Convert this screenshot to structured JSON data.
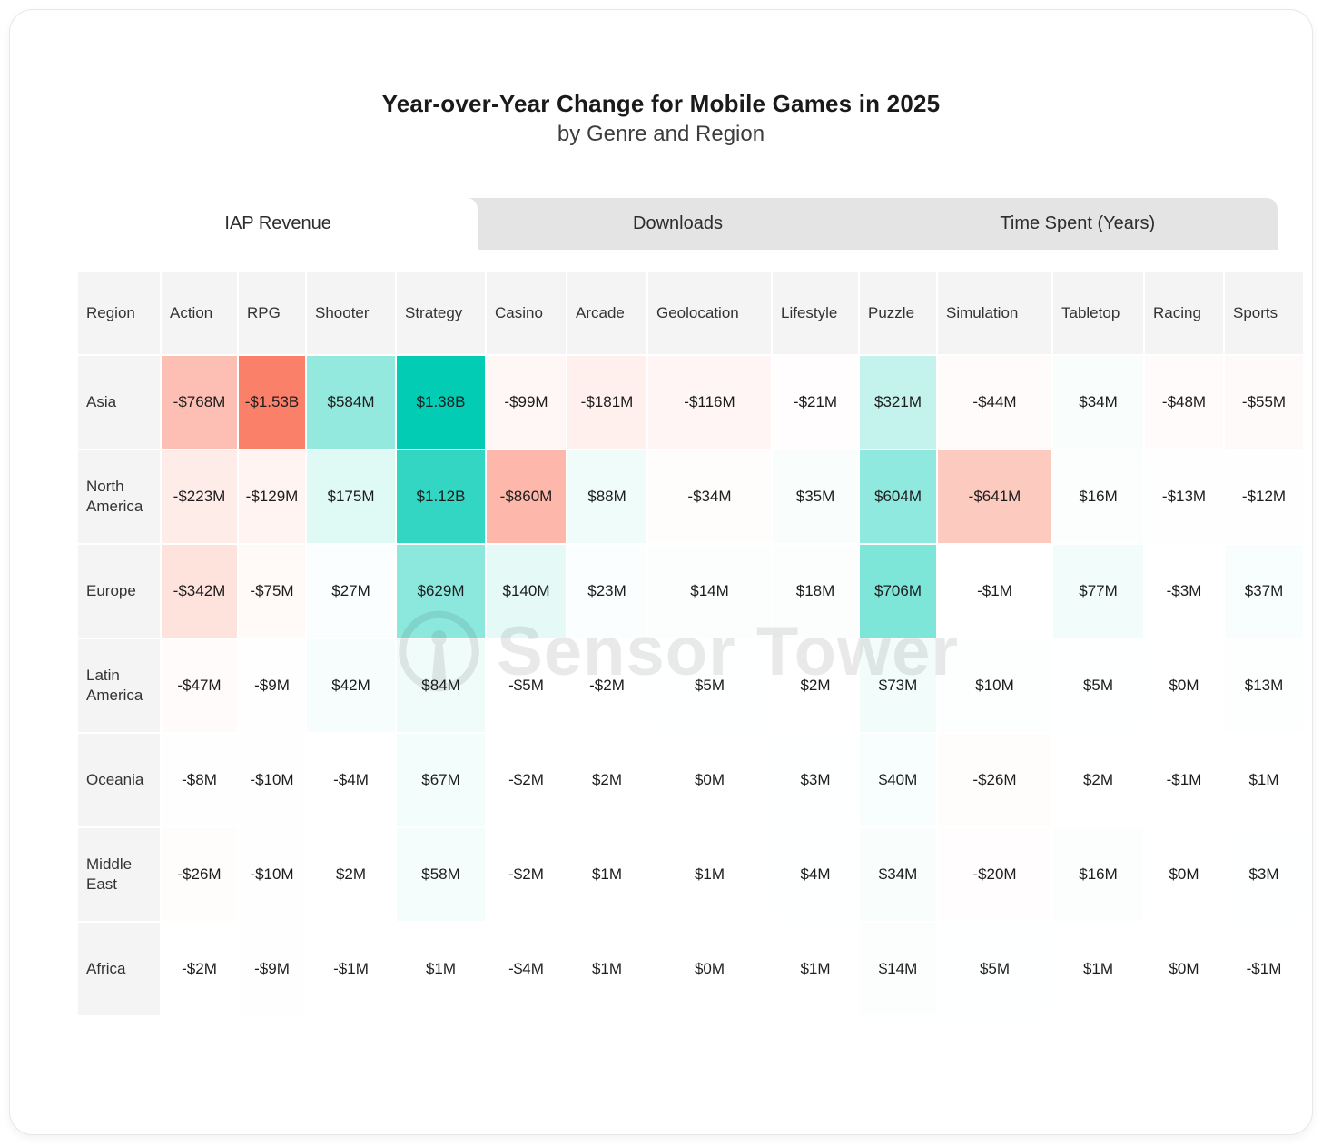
{
  "title": "Year-over-Year Change for Mobile Games in 2025",
  "subtitle": "by Genre and Region",
  "tabs": [
    {
      "label": "IAP Revenue",
      "active": true
    },
    {
      "label": "Downloads",
      "active": false
    },
    {
      "label": "Time Spent (Years)",
      "active": false
    }
  ],
  "watermark": {
    "text": "Sensor Tower"
  },
  "chart_data": {
    "type": "heatmap",
    "title": "Year-over-Year Change for Mobile Games in 2025",
    "subtitle": "by Genre and Region",
    "active_metric": "IAP Revenue",
    "unit": "USD year-over-year change (M = millions, B = billions)",
    "row_header_label": "Region",
    "columns": [
      "Action",
      "RPG",
      "Shooter",
      "Strategy",
      "Casino",
      "Arcade",
      "Geolocation",
      "Lifestyle",
      "Puzzle",
      "Simulation",
      "Tabletop",
      "Racing",
      "Sports"
    ],
    "rows": [
      {
        "region": "Asia",
        "values": [
          "-$768M",
          "-$1.53B",
          "$584M",
          "$1.38B",
          "-$99M",
          "-$181M",
          "-$116M",
          "-$21M",
          "$321M",
          "-$44M",
          "$34M",
          "-$48M",
          "-$55M"
        ],
        "numeric_millions": [
          -768,
          -1530,
          584,
          1380,
          -99,
          -181,
          -116,
          -21,
          321,
          -44,
          34,
          -48,
          -55
        ]
      },
      {
        "region": "North America",
        "values": [
          "-$223M",
          "-$129M",
          "$175M",
          "$1.12B",
          "-$860M",
          "$88M",
          "-$34M",
          "$35M",
          "$604M",
          "-$641M",
          "$16M",
          "-$13M",
          "-$12M"
        ],
        "numeric_millions": [
          -223,
          -129,
          175,
          1120,
          -860,
          88,
          -34,
          35,
          604,
          -641,
          16,
          -13,
          -12
        ]
      },
      {
        "region": "Europe",
        "values": [
          "-$342M",
          "-$75M",
          "$27M",
          "$629M",
          "$140M",
          "$23M",
          "$14M",
          "$18M",
          "$706M",
          "-$1M",
          "$77M",
          "-$3M",
          "$37M"
        ],
        "numeric_millions": [
          -342,
          -75,
          27,
          629,
          140,
          23,
          14,
          18,
          706,
          -1,
          77,
          -3,
          37
        ]
      },
      {
        "region": "Latin America",
        "values": [
          "-$47M",
          "-$9M",
          "$42M",
          "$84M",
          "-$5M",
          "-$2M",
          "$5M",
          "$2M",
          "$73M",
          "$10M",
          "$5M",
          "$0M",
          "$13M"
        ],
        "numeric_millions": [
          -47,
          -9,
          42,
          84,
          -5,
          -2,
          5,
          2,
          73,
          10,
          5,
          0,
          13
        ]
      },
      {
        "region": "Oceania",
        "values": [
          "-$8M",
          "-$10M",
          "-$4M",
          "$67M",
          "-$2M",
          "$2M",
          "$0M",
          "$3M",
          "$40M",
          "-$26M",
          "$2M",
          "-$1M",
          "$1M"
        ],
        "numeric_millions": [
          -8,
          -10,
          -4,
          67,
          -2,
          2,
          0,
          3,
          40,
          -26,
          2,
          -1,
          1
        ]
      },
      {
        "region": "Middle East",
        "values": [
          "-$26M",
          "-$10M",
          "$2M",
          "$58M",
          "-$2M",
          "$1M",
          "$1M",
          "$4M",
          "$34M",
          "-$20M",
          "$16M",
          "$0M",
          "$3M"
        ],
        "numeric_millions": [
          -26,
          -10,
          2,
          58,
          -2,
          1,
          1,
          4,
          34,
          -20,
          16,
          0,
          3
        ]
      },
      {
        "region": "Africa",
        "values": [
          "-$2M",
          "-$9M",
          "-$1M",
          "$1M",
          "-$4M",
          "$1M",
          "$0M",
          "$1M",
          "$14M",
          "$5M",
          "$1M",
          "$0M",
          "-$1M"
        ],
        "numeric_millions": [
          -2,
          -9,
          -1,
          1,
          -4,
          1,
          0,
          1,
          14,
          5,
          1,
          0,
          -1
        ]
      }
    ],
    "color_scale": {
      "positive": "#02ccb4",
      "negative": "#fb8069",
      "neutral": "#ffffff",
      "positive_max_millions": 1380,
      "negative_max_millions": 1530
    },
    "layout": {
      "legend": "none",
      "grid": "white 2px cell gaps",
      "header_bg": "#f4f4f4"
    }
  }
}
